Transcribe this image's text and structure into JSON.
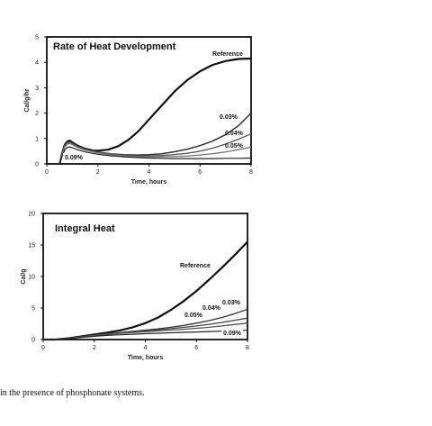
{
  "chart_data": [
    {
      "type": "line",
      "title": "Rate of Heat Development",
      "xlabel": "Time, hours",
      "ylabel": "Cal/g/hr",
      "xlim": [
        0,
        8
      ],
      "ylim": [
        0,
        5
      ],
      "xticks": [
        "0",
        "2",
        "4",
        "6",
        "8"
      ],
      "yticks": [
        "0",
        "1",
        "2",
        "3",
        "4",
        "5"
      ],
      "series": [
        {
          "name": "Reference",
          "x": [
            0.5,
            0.6,
            0.7,
            0.8,
            0.9,
            1,
            1.2,
            1.5,
            1.8,
            2,
            2.4,
            2.8,
            3.2,
            3.6,
            4,
            4.5,
            5,
            5.5,
            6,
            6.5,
            7,
            7.5,
            8
          ],
          "y": [
            0,
            0.4,
            0.75,
            0.88,
            0.92,
            0.85,
            0.72,
            0.6,
            0.53,
            0.52,
            0.56,
            0.7,
            0.95,
            1.3,
            1.75,
            2.3,
            2.85,
            3.3,
            3.65,
            3.9,
            4.05,
            4.13,
            4.15
          ]
        },
        {
          "name": "0.03%",
          "x": [
            0.5,
            0.6,
            0.7,
            0.8,
            0.9,
            1,
            1.2,
            1.5,
            2,
            2.5,
            3,
            3.5,
            4,
            4.5,
            5,
            5.5,
            6,
            6.5,
            7,
            7.5,
            8
          ],
          "y": [
            0,
            0.4,
            0.72,
            0.85,
            0.88,
            0.82,
            0.7,
            0.58,
            0.47,
            0.4,
            0.36,
            0.35,
            0.36,
            0.4,
            0.48,
            0.58,
            0.72,
            0.9,
            1.15,
            1.5,
            2.0
          ]
        },
        {
          "name": "0.04%",
          "x": [
            0.5,
            0.6,
            0.7,
            0.8,
            0.9,
            1,
            1.2,
            1.5,
            2,
            2.5,
            3,
            3.5,
            4,
            4.5,
            5,
            5.5,
            6,
            6.5,
            7,
            7.5,
            8
          ],
          "y": [
            0,
            0.38,
            0.7,
            0.82,
            0.85,
            0.8,
            0.68,
            0.56,
            0.45,
            0.38,
            0.34,
            0.32,
            0.32,
            0.33,
            0.37,
            0.42,
            0.5,
            0.62,
            0.78,
            0.97,
            1.18
          ]
        },
        {
          "name": "0.05%",
          "x": [
            0.5,
            0.6,
            0.7,
            0.8,
            0.9,
            1,
            1.2,
            1.5,
            2,
            2.5,
            3,
            3.5,
            4,
            4.5,
            5,
            5.5,
            6,
            6.5,
            7,
            7.5,
            8
          ],
          "y": [
            0,
            0.36,
            0.66,
            0.78,
            0.8,
            0.76,
            0.65,
            0.54,
            0.43,
            0.36,
            0.32,
            0.29,
            0.28,
            0.28,
            0.29,
            0.31,
            0.35,
            0.4,
            0.47,
            0.56,
            0.66
          ]
        },
        {
          "name": "0.09%",
          "x": [
            0.5,
            0.6,
            0.7,
            0.8,
            0.9,
            1,
            1.2,
            1.5,
            2,
            2.5,
            3,
            3.5,
            4,
            4.5,
            5,
            5.5,
            6,
            6.5,
            7,
            7.5,
            8
          ],
          "y": [
            0,
            0.3,
            0.55,
            0.65,
            0.67,
            0.64,
            0.56,
            0.47,
            0.38,
            0.32,
            0.28,
            0.25,
            0.23,
            0.22,
            0.21,
            0.21,
            0.21,
            0.21,
            0.22,
            0.22,
            0.23
          ]
        }
      ]
    },
    {
      "type": "line",
      "title": "Integral Heat",
      "xlabel": "Time, hours",
      "ylabel": "Cal/g",
      "xlim": [
        0,
        8
      ],
      "ylim": [
        0,
        20
      ],
      "xticks": [
        "0",
        "2",
        "4",
        "6",
        "8"
      ],
      "yticks": [
        "0",
        "5",
        "10",
        "15",
        "20"
      ],
      "series": [
        {
          "name": "Reference",
          "x": [
            0,
            0.5,
            1,
            1.5,
            2,
            2.5,
            3,
            3.5,
            4,
            4.5,
            5,
            5.5,
            6,
            6.5,
            7,
            7.5,
            8
          ],
          "y": [
            0,
            0,
            0.2,
            0.5,
            0.8,
            1.1,
            1.45,
            1.95,
            2.6,
            3.5,
            4.7,
            6.1,
            7.7,
            9.5,
            11.4,
            13.4,
            15.5
          ]
        },
        {
          "name": "0.03%",
          "x": [
            0,
            0.5,
            1,
            1.5,
            2,
            2.5,
            3,
            3.5,
            4,
            4.5,
            5,
            5.5,
            6,
            6.5,
            7,
            7.5,
            8
          ],
          "y": [
            0,
            0,
            0.2,
            0.45,
            0.7,
            0.9,
            1.1,
            1.3,
            1.5,
            1.7,
            1.95,
            2.25,
            2.6,
            3.0,
            3.5,
            4.1,
            4.8
          ]
        },
        {
          "name": "0.04%",
          "x": [
            0,
            0.5,
            1,
            1.5,
            2,
            2.5,
            3,
            3.5,
            4,
            4.5,
            5,
            5.5,
            6,
            6.5,
            7,
            7.5,
            8
          ],
          "y": [
            0,
            0,
            0.2,
            0.45,
            0.68,
            0.87,
            1.05,
            1.22,
            1.38,
            1.55,
            1.73,
            1.93,
            2.15,
            2.42,
            2.72,
            3.05,
            3.4
          ]
        },
        {
          "name": "0.05%",
          "x": [
            0,
            0.5,
            1,
            1.5,
            2,
            2.5,
            3,
            3.5,
            4,
            4.5,
            5,
            5.5,
            6,
            6.5,
            7,
            7.5,
            8
          ],
          "y": [
            0,
            0,
            0.18,
            0.42,
            0.64,
            0.82,
            0.98,
            1.12,
            1.25,
            1.38,
            1.5,
            1.63,
            1.78,
            1.95,
            2.15,
            2.38,
            2.6
          ]
        },
        {
          "name": "0.09%",
          "x": [
            0,
            0.5,
            1,
            1.5,
            2,
            2.5,
            3,
            3.5,
            4,
            4.5,
            5,
            5.5,
            6,
            6.5,
            7,
            7.5,
            8
          ],
          "y": [
            0,
            0,
            0.15,
            0.35,
            0.52,
            0.65,
            0.76,
            0.85,
            0.93,
            1.0,
            1.07,
            1.14,
            1.2,
            1.27,
            1.33,
            1.4,
            1.47
          ]
        }
      ]
    }
  ],
  "caption": "in the presence of phosphonate systems."
}
